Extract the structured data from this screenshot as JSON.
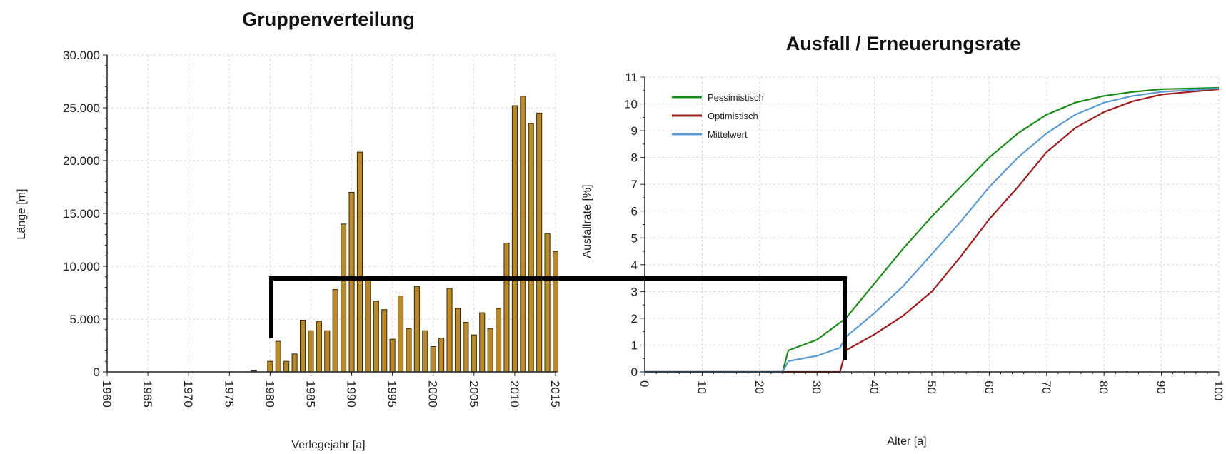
{
  "chart_data": [
    {
      "type": "bar",
      "title": "Gruppenverteilung",
      "xlabel": "Verlegejahr [a]",
      "ylabel": "Länge [m]",
      "xlim": [
        1960,
        2015
      ],
      "ylim": [
        0,
        30000
      ],
      "x_ticks": [
        "1960",
        "1965",
        "1970",
        "1975",
        "1980",
        "1985",
        "1990",
        "1995",
        "2000",
        "2005",
        "2010",
        "2015"
      ],
      "y_ticks": [
        "0",
        "5.000",
        "10.000",
        "15.000",
        "20.000",
        "25.000",
        "30.000"
      ],
      "grid": true,
      "bar_color": "#b8892a",
      "x": [
        1978,
        1980,
        1981,
        1982,
        1983,
        1984,
        1985,
        1986,
        1987,
        1988,
        1989,
        1990,
        1991,
        1992,
        1993,
        1994,
        1995,
        1996,
        1997,
        1998,
        1999,
        2000,
        2001,
        2002,
        2003,
        2004,
        2005,
        2006,
        2007,
        2008,
        2009,
        2010,
        2011,
        2012,
        2013,
        2014,
        2015
      ],
      "values": [
        100,
        1000,
        2900,
        1000,
        1700,
        4900,
        3900,
        4800,
        3900,
        7800,
        14000,
        17000,
        20800,
        9000,
        6700,
        5900,
        3100,
        7200,
        4100,
        8100,
        3900,
        2400,
        3200,
        7900,
        6000,
        4700,
        3500,
        5600,
        4100,
        6000,
        12200,
        25200,
        26100,
        23500,
        24500,
        13100,
        11400
      ]
    },
    {
      "type": "line",
      "title": "Ausfall / Erneuerungsrate",
      "xlabel": "Alter [a]",
      "ylabel": "Ausfallrate [%]",
      "xlim": [
        0,
        100
      ],
      "ylim": [
        0,
        11
      ],
      "x_ticks": [
        "0",
        "10",
        "20",
        "30",
        "40",
        "50",
        "60",
        "70",
        "80",
        "90",
        "100"
      ],
      "y_ticks": [
        "0",
        "1",
        "2",
        "3",
        "4",
        "5",
        "6",
        "7",
        "8",
        "9",
        "10",
        "11"
      ],
      "grid": true,
      "legend_position": "top-left",
      "series": [
        {
          "name": "Pessimistisch",
          "color": "#1a8c1a",
          "x": [
            0,
            24,
            25,
            30,
            35,
            40,
            45,
            50,
            55,
            60,
            65,
            70,
            75,
            80,
            85,
            90,
            100
          ],
          "y": [
            0,
            0,
            0.8,
            1.2,
            2.0,
            3.3,
            4.6,
            5.8,
            6.9,
            8.0,
            8.9,
            9.6,
            10.05,
            10.3,
            10.45,
            10.55,
            10.6
          ]
        },
        {
          "name": "Optimistisch",
          "color": "#a01c1c",
          "x": [
            0,
            34,
            34.5,
            35,
            40,
            45,
            50,
            55,
            60,
            65,
            70,
            75,
            80,
            85,
            90,
            95,
            100
          ],
          "y": [
            0,
            0,
            0.4,
            0.8,
            1.4,
            2.1,
            3.0,
            4.3,
            5.7,
            6.9,
            8.2,
            9.1,
            9.7,
            10.1,
            10.35,
            10.45,
            10.55
          ]
        },
        {
          "name": "Mittelwert",
          "color": "#5b9bd5",
          "x": [
            0,
            24,
            25,
            30,
            34,
            35,
            40,
            45,
            50,
            55,
            60,
            65,
            70,
            75,
            80,
            85,
            90,
            95,
            100
          ],
          "y": [
            0,
            0,
            0.4,
            0.6,
            0.9,
            1.3,
            2.2,
            3.2,
            4.4,
            5.6,
            6.9,
            8.0,
            8.9,
            9.6,
            10.05,
            10.3,
            10.45,
            10.52,
            10.58
          ]
        }
      ]
    }
  ]
}
